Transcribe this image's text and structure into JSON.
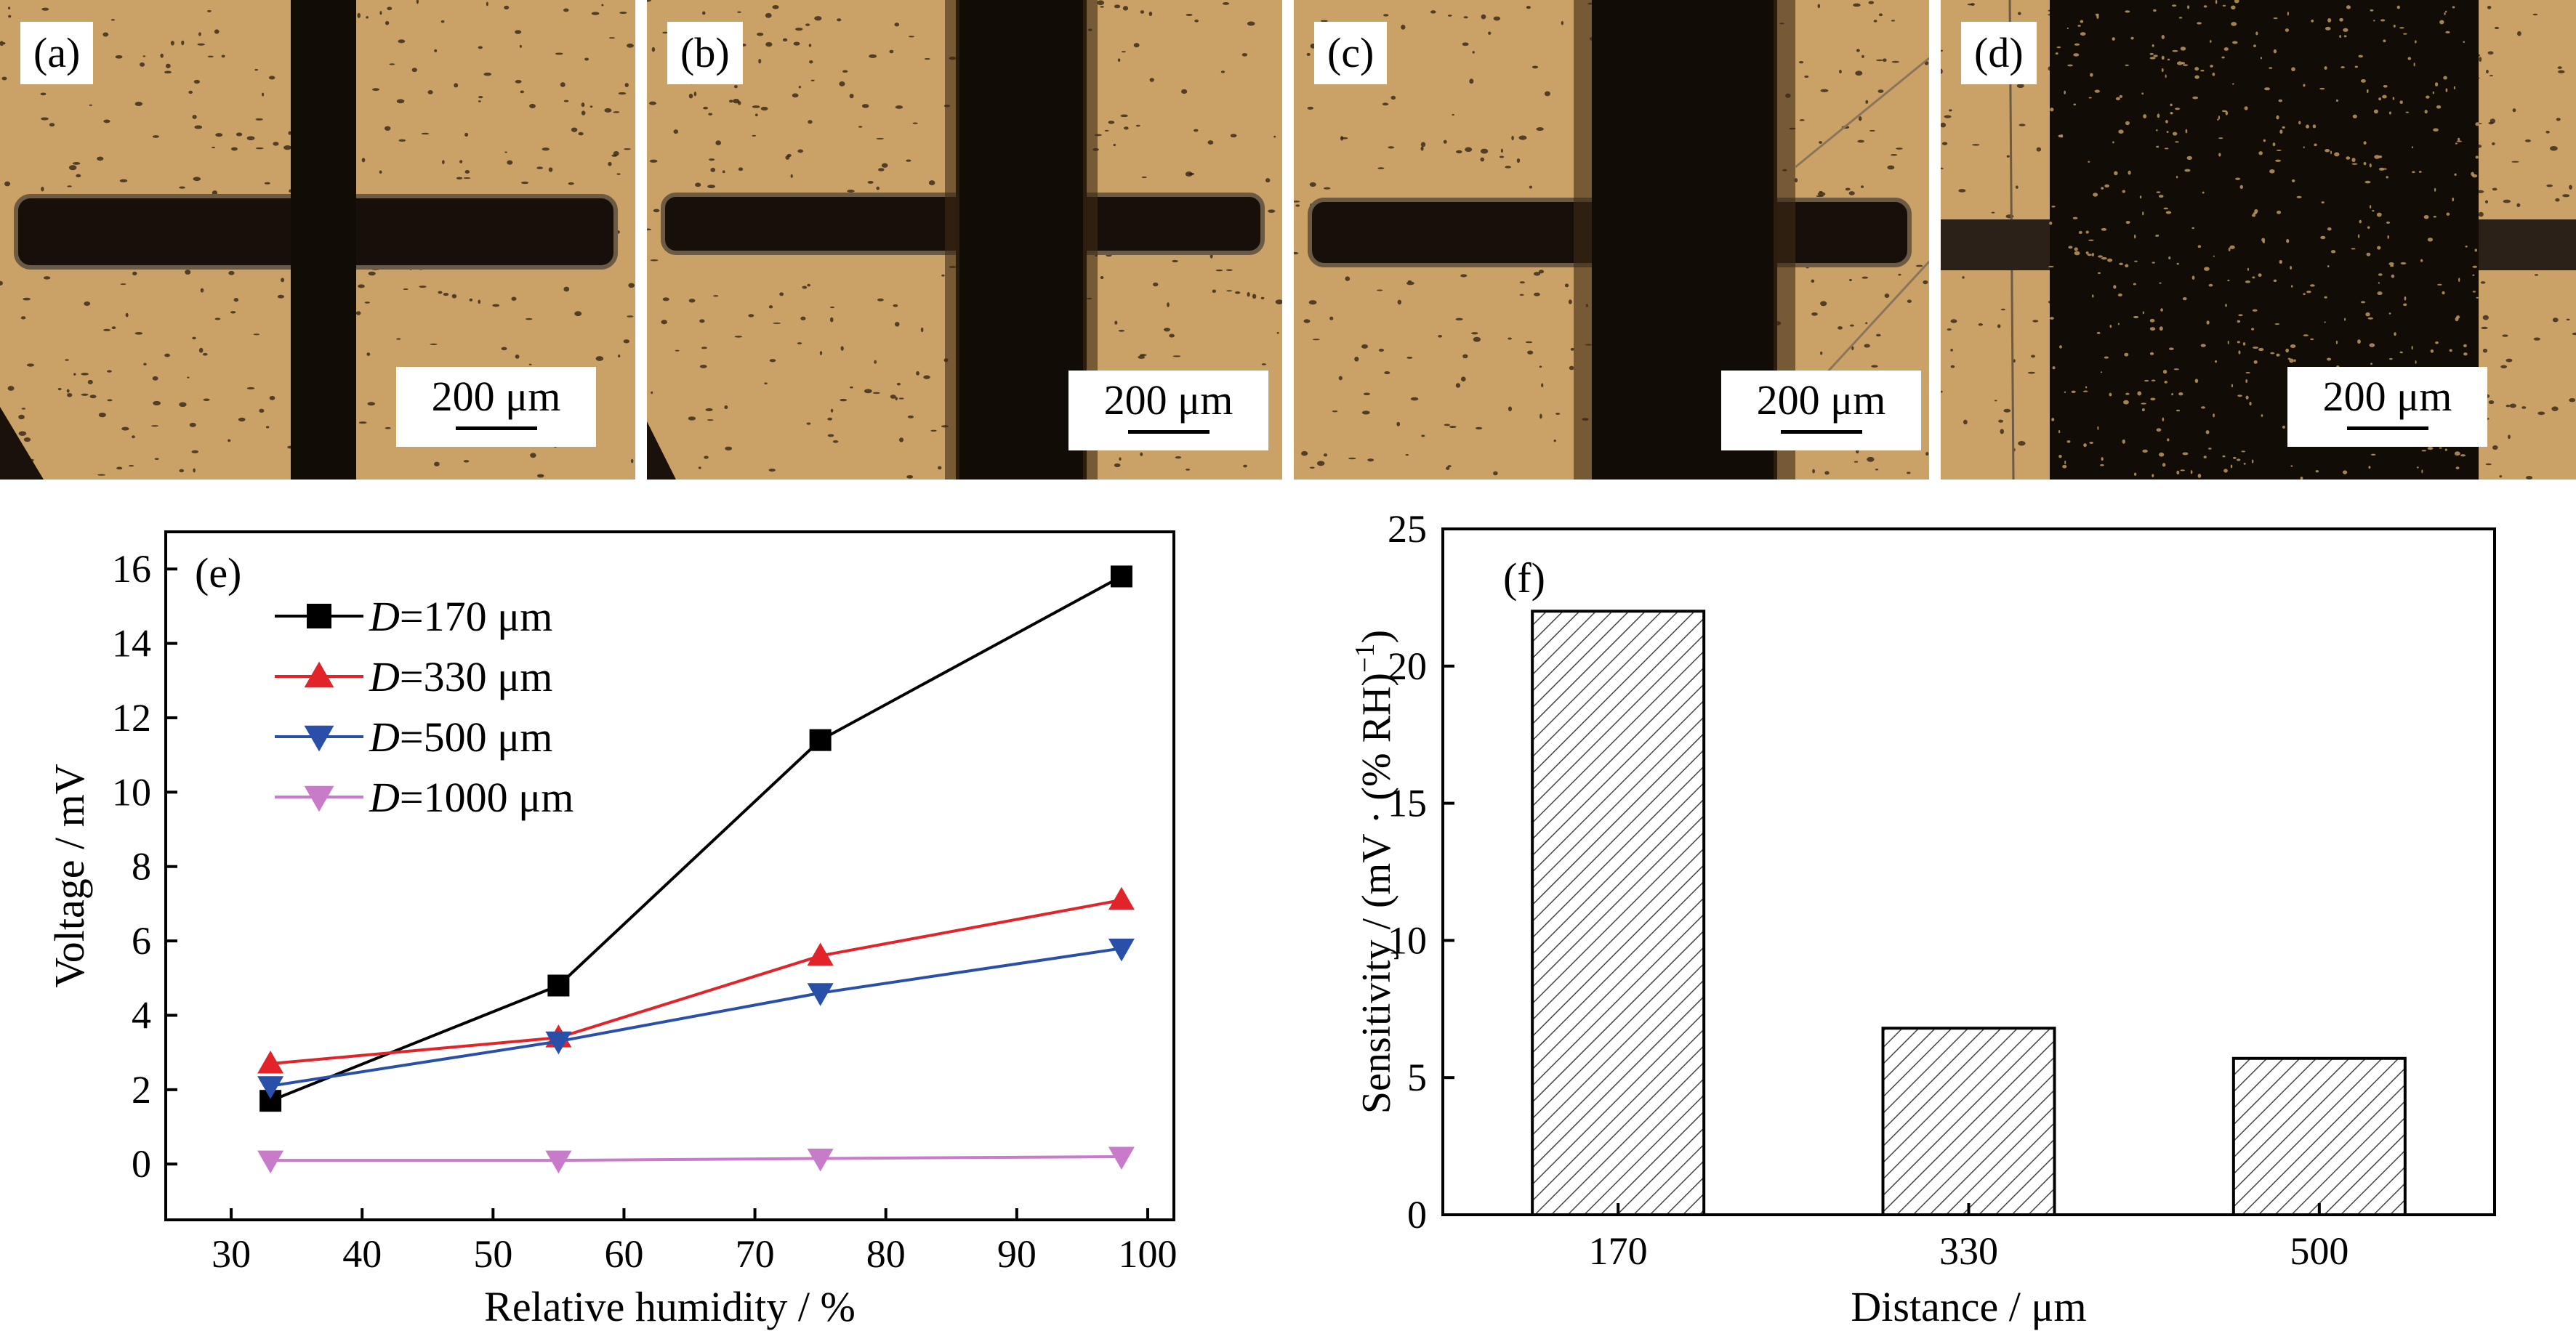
{
  "panels": [
    {
      "label": "(a)",
      "scale": "200 μm"
    },
    {
      "label": "(b)",
      "scale": "200 μm"
    },
    {
      "label": "(c)",
      "scale": "200 μm"
    },
    {
      "label": "(d)",
      "scale": "200 μm"
    }
  ],
  "colors": {
    "photo_bg": "#c9a166",
    "electrode": "#120c06",
    "black": "#000000",
    "red": "#e3232a",
    "blue": "#2a4fa8",
    "magenta": "#c77bc9"
  },
  "chart_data": [
    {
      "type": "line",
      "panel_label": "(e)",
      "xlabel": "Relative humidity / %",
      "ylabel": "Voltage / mV",
      "xlim": [
        25,
        102
      ],
      "ylim": [
        -1.5,
        17
      ],
      "xticks": [
        30,
        40,
        50,
        60,
        70,
        80,
        90,
        100
      ],
      "yticks": [
        0,
        2,
        4,
        6,
        8,
        10,
        12,
        14,
        16
      ],
      "legend_position": "top-left",
      "grid": false,
      "series": [
        {
          "name_prefix": "D",
          "name_suffix": "=170 μm",
          "color": "#000000",
          "marker": "square",
          "x": [
            33,
            55,
            75,
            98
          ],
          "y": [
            1.7,
            4.8,
            11.4,
            15.8
          ]
        },
        {
          "name_prefix": "D",
          "name_suffix": "=330 μm",
          "color": "#e3232a",
          "marker": "triangle-up",
          "x": [
            33,
            55,
            75,
            98
          ],
          "y": [
            2.7,
            3.4,
            5.6,
            7.1
          ]
        },
        {
          "name_prefix": "D",
          "name_suffix": "=500 μm",
          "color": "#2a4fa8",
          "marker": "triangle-down",
          "x": [
            33,
            55,
            75,
            98
          ],
          "y": [
            2.1,
            3.3,
            4.6,
            5.8
          ]
        },
        {
          "name_prefix": "D",
          "name_suffix": "=1000 μm",
          "color": "#c77bc9",
          "marker": "triangle-down",
          "x": [
            33,
            55,
            75,
            98
          ],
          "y": [
            0.1,
            0.1,
            0.15,
            0.2
          ]
        }
      ]
    },
    {
      "type": "bar",
      "panel_label": "(f)",
      "xlabel": "Distance / μm",
      "ylabel_main": "Sensitivity / (mV · (% RH)",
      "ylabel_sup": "−1",
      "ylabel_close": ")",
      "categories": [
        "170",
        "330",
        "500"
      ],
      "values": [
        22.0,
        6.8,
        5.7
      ],
      "ylim": [
        0,
        25
      ],
      "yticks": [
        0,
        5,
        10,
        15,
        20,
        25
      ],
      "hatch": "diagonal",
      "grid": false
    }
  ]
}
